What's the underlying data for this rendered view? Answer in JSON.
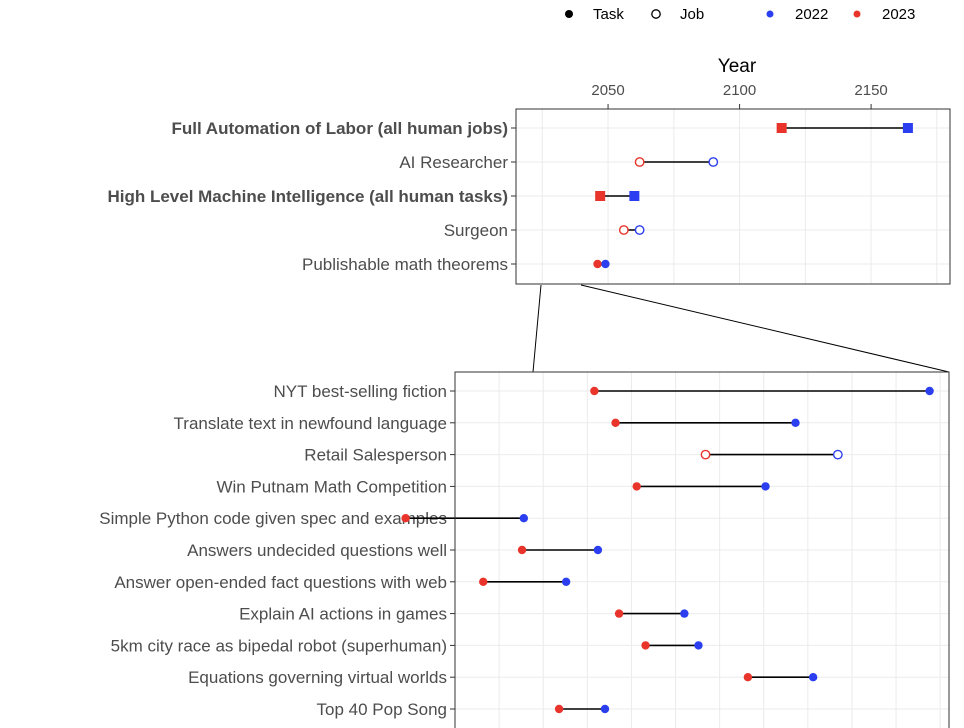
{
  "chart_data": [
    {
      "type": "dumbbell",
      "panel": "top",
      "xlabel": "Year",
      "xticks": [
        2050,
        2100,
        2150
      ],
      "xlim": [
        2015,
        2180
      ],
      "grid": true,
      "series": [
        {
          "name": "2022",
          "color": "#2b3ff0"
        },
        {
          "name": "2023",
          "color": "#e8342a"
        }
      ],
      "rows": [
        {
          "label": "Full Automation of Labor (all human jobs)",
          "kind": "Job",
          "bold": true,
          "shape": "square",
          "y2022": 2164,
          "y2023": 2116
        },
        {
          "label": "AI Researcher",
          "kind": "Job",
          "bold": false,
          "shape": "circle",
          "y2022": 2090,
          "y2023": 2062
        },
        {
          "label": "High Level Machine Intelligence (all human tasks)",
          "kind": "Task",
          "bold": true,
          "shape": "square",
          "y2022": 2060,
          "y2023": 2047
        },
        {
          "label": "Surgeon",
          "kind": "Job",
          "bold": false,
          "shape": "circle",
          "y2022": 2062,
          "y2023": 2056
        },
        {
          "label": "Publishable math theorems",
          "kind": "Task",
          "bold": false,
          "shape": "circle",
          "y2022": 2049,
          "y2023": 2046
        }
      ]
    },
    {
      "type": "dumbbell",
      "panel": "zoom",
      "grid": true,
      "xlim": [
        2022,
        2050
      ],
      "series": [
        {
          "name": "2022",
          "color": "#2b3ff0"
        },
        {
          "name": "2023",
          "color": "#e8342a"
        }
      ],
      "rows": [
        {
          "label": "NYT best-selling fiction",
          "kind": "Task",
          "y2022": 2048.9,
          "y2023": 2029.9
        },
        {
          "label": "Translate text in newfound language",
          "kind": "Task",
          "y2022": 2041.3,
          "y2023": 2031.1
        },
        {
          "label": "Retail Salesperson",
          "kind": "Job",
          "y2022": 2043.7,
          "y2023": 2036.2
        },
        {
          "label": "Win Putnam Math Competition",
          "kind": "Task",
          "y2022": 2039.6,
          "y2023": 2032.3
        },
        {
          "label": "Simple Python code given spec and examples",
          "kind": "Task",
          "y2022": 2025.9,
          "y2023": 2019.2
        },
        {
          "label": "Answers undecided questions well",
          "kind": "Task",
          "y2022": 2030.1,
          "y2023": 2025.8
        },
        {
          "label": "Answer open-ended fact questions with web",
          "kind": "Task",
          "y2022": 2028.3,
          "y2023": 2023.6
        },
        {
          "label": "Explain AI actions in games",
          "kind": "Task",
          "y2022": 2035.0,
          "y2023": 2031.3
        },
        {
          "label": "5km city race as bipedal robot (superhuman)",
          "kind": "Task",
          "y2022": 2035.8,
          "y2023": 2032.8
        },
        {
          "label": "Equations governing virtual worlds",
          "kind": "Task",
          "y2022": 2042.3,
          "y2023": 2038.6
        },
        {
          "label": "Top 40 Pop Song",
          "kind": "Task",
          "y2022": 2030.5,
          "y2023": 2027.9
        }
      ]
    }
  ],
  "legend": {
    "shape_items": [
      {
        "label": "Task",
        "style": "filled"
      },
      {
        "label": "Job",
        "style": "hollow"
      }
    ],
    "color_items": [
      {
        "label": "2022",
        "color": "#2b3ff0"
      },
      {
        "label": "2023",
        "color": "#e8342a"
      }
    ]
  }
}
